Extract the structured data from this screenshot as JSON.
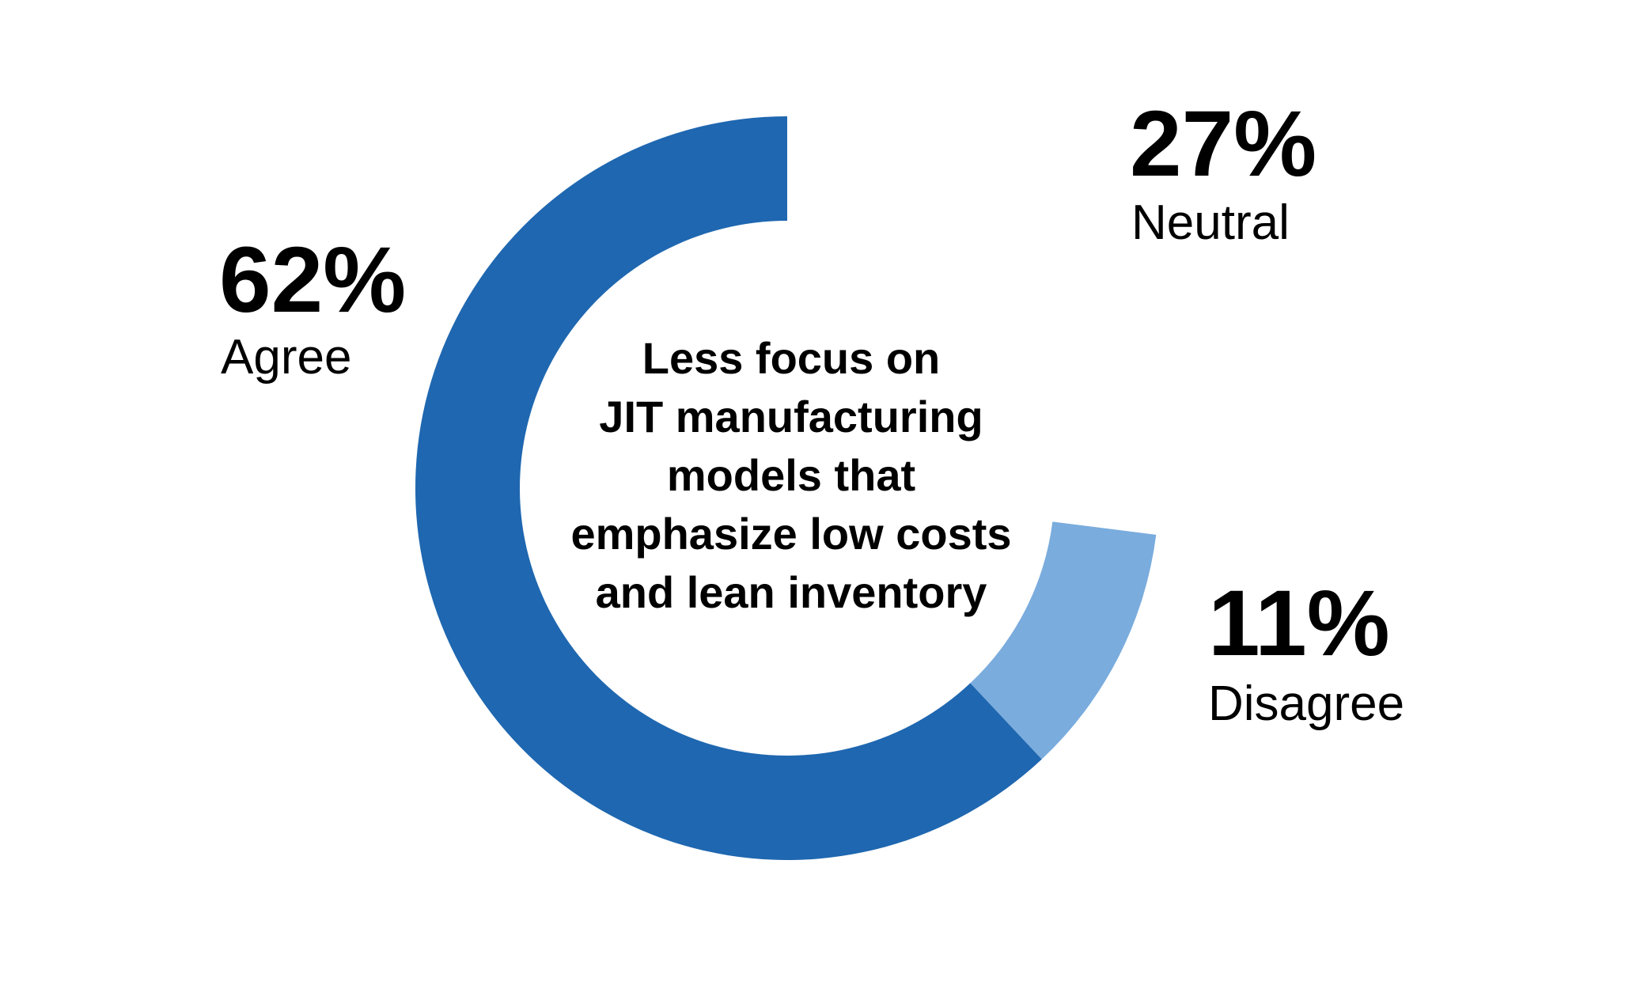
{
  "chart_data": {
    "type": "pie",
    "variant": "donut",
    "title_lines": [
      "Less focus on",
      "JIT manufacturing",
      "models that",
      "emphasize low costs",
      "and lean inventory"
    ],
    "slices": [
      {
        "label": "Neutral",
        "value": 27,
        "display": "27%",
        "color": "#ffffff"
      },
      {
        "label": "Disagree",
        "value": 11,
        "display": "11%",
        "color": "#7aacdd"
      },
      {
        "label": "Agree",
        "value": 62,
        "display": "62%",
        "color": "#1f67b0"
      }
    ]
  }
}
